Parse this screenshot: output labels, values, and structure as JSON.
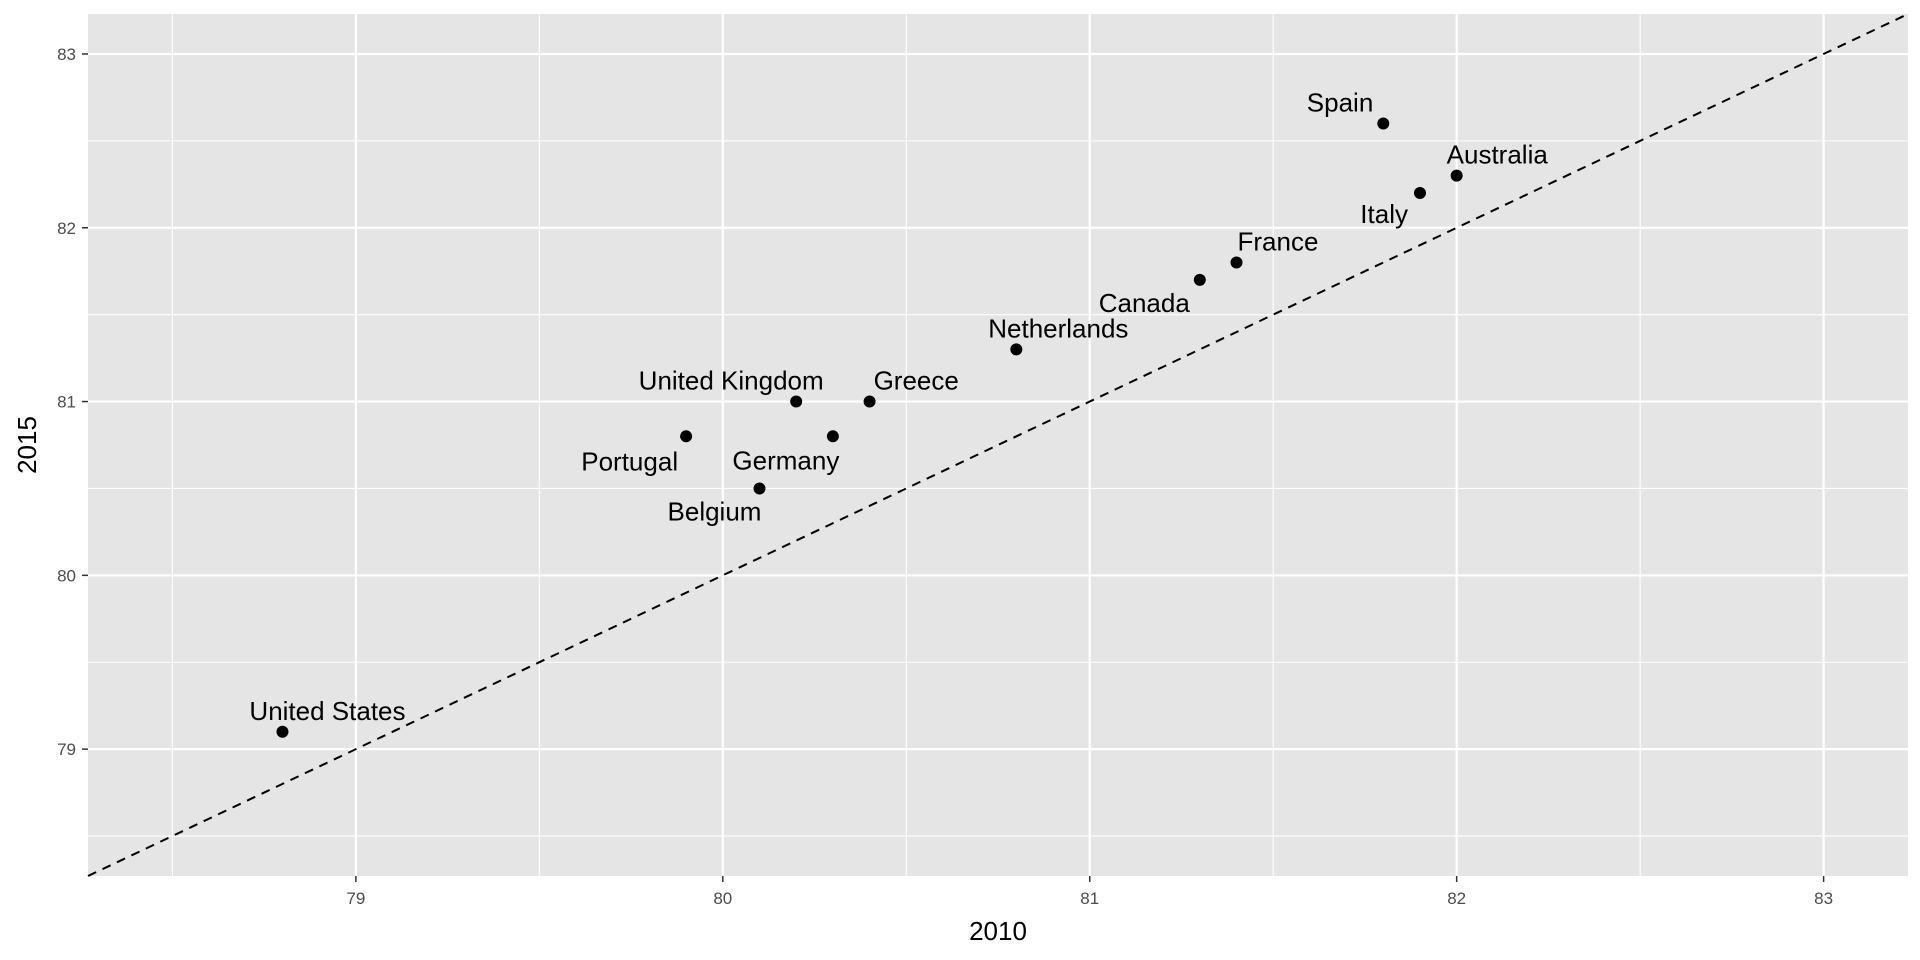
{
  "chart_data": {
    "type": "scatter",
    "title": "",
    "xlabel": "2010",
    "ylabel": "2015",
    "xlim": [
      78.27,
      83.23
    ],
    "ylim": [
      78.27,
      83.23
    ],
    "x_ticks": [
      "79",
      "80",
      "81",
      "82",
      "83"
    ],
    "y_ticks": [
      "79",
      "80",
      "81",
      "82",
      "83"
    ],
    "grid": true,
    "reference_line": {
      "slope": 1,
      "intercept": 0,
      "style": "dashed"
    },
    "points": [
      {
        "label": "United States",
        "x": 78.8,
        "y": 79.1
      },
      {
        "label": "Portugal",
        "x": 79.9,
        "y": 80.8
      },
      {
        "label": "Belgium",
        "x": 80.1,
        "y": 80.5
      },
      {
        "label": "United Kingdom",
        "x": 80.2,
        "y": 81.0
      },
      {
        "label": "Germany",
        "x": 80.3,
        "y": 80.8
      },
      {
        "label": "Greece",
        "x": 80.4,
        "y": 81.0
      },
      {
        "label": "Netherlands",
        "x": 80.8,
        "y": 81.3
      },
      {
        "label": "Canada",
        "x": 81.3,
        "y": 81.7
      },
      {
        "label": "France",
        "x": 81.4,
        "y": 81.8
      },
      {
        "label": "Italy",
        "x": 81.9,
        "y": 82.2
      },
      {
        "label": "Australia",
        "x": 82.0,
        "y": 82.3
      },
      {
        "label": "Spain",
        "x": 81.8,
        "y": 82.6
      }
    ],
    "colors": {
      "panel": "#e5e5e5",
      "grid": "#ffffff",
      "point": "#000000",
      "text": "#000000",
      "tick_text": "#4d4d4d"
    }
  }
}
